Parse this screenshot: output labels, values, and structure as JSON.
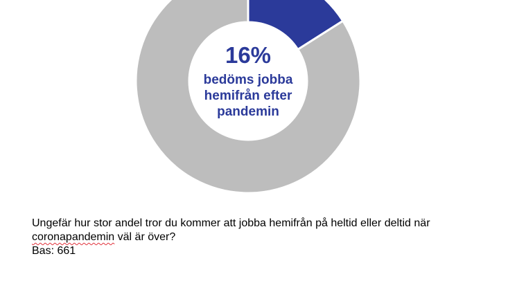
{
  "chart_data": {
    "type": "pie",
    "subtype": "donut",
    "slices": [
      {
        "value": 16,
        "color": "#2b3a9a"
      },
      {
        "value": 84,
        "color": "#bdbdbd"
      }
    ],
    "center_label": {
      "value": "16%",
      "lines": [
        "bedöms jobba",
        "hemifrån efter",
        "pandemin"
      ],
      "color": "#2b3a9a"
    }
  },
  "question": {
    "line1": "Ungefär hur stor andel tror du kommer att jobba hemifrån på heltid eller deltid när",
    "line2_word": "coronapandemin",
    "line2_rest": " väl är över?",
    "base": "Bas: 661"
  }
}
